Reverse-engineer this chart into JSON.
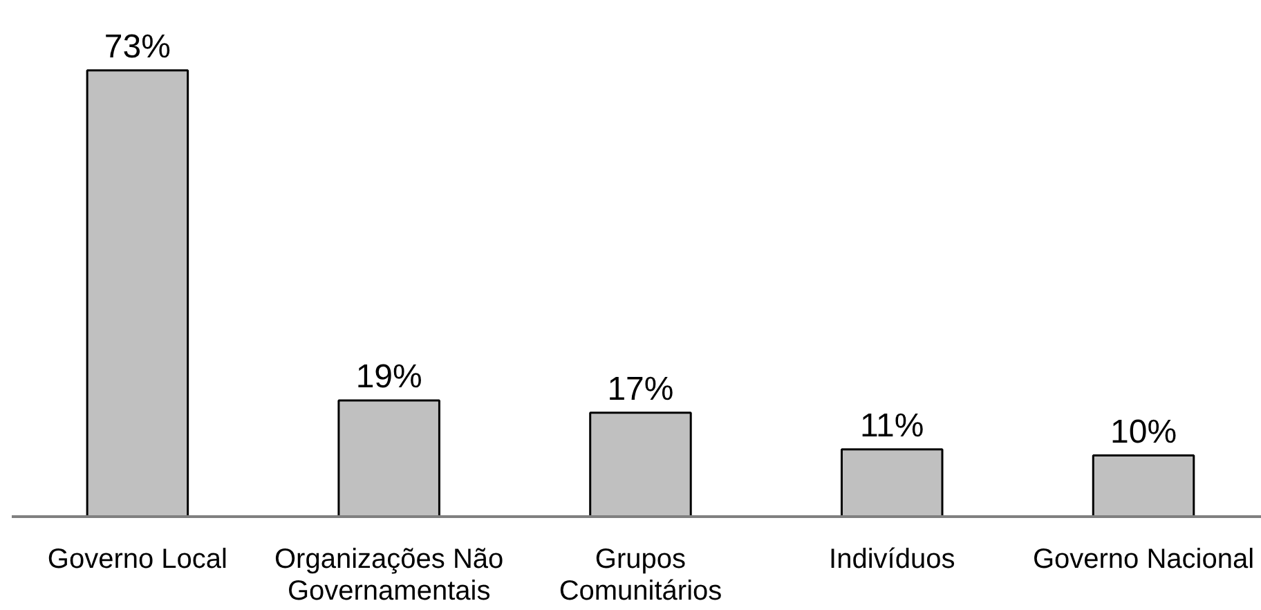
{
  "chart_data": {
    "type": "bar",
    "categories": [
      "Governo Local",
      "Organizações Não\nGovernamentais",
      "Grupos\nComunitários",
      "Indivíduos",
      "Governo Nacional"
    ],
    "values": [
      73,
      19,
      17,
      11,
      10
    ],
    "value_labels": [
      "73%",
      "19%",
      "17%",
      "11%",
      "10%"
    ],
    "color": "#c0c0c0",
    "tick_labels": "x"
  }
}
